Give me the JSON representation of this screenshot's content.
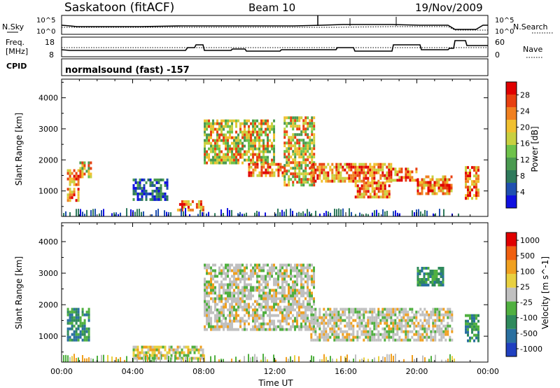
{
  "header": {
    "station": "Saskatoon (fitACF)",
    "beam": "Beam 10",
    "date": "19/Nov/2009"
  },
  "noise_panel": {
    "left_label": "N.Sky",
    "right_label": "N.Search",
    "left_ticks": [
      "10^5",
      "10^0"
    ],
    "right_ticks": [
      "10^5",
      "10^0"
    ]
  },
  "freq_panel": {
    "left_label_1": "Freq.",
    "left_label_2": "[MHz]",
    "right_label": "Nave",
    "left_ticks": [
      "18",
      "8"
    ],
    "right_ticks": [
      "60",
      "0"
    ]
  },
  "cpid": {
    "label": "CPID",
    "text": "normalsound (fast) -157"
  },
  "chart_data": [
    {
      "type": "heatmap",
      "name": "power",
      "ylabel": "Slant Range [km]",
      "yticks": [
        "1000",
        "2000",
        "3000",
        "4000"
      ],
      "ylim": [
        180,
        4600
      ],
      "xlim": [
        0,
        24
      ],
      "colorbar": {
        "label": "Power [dB]",
        "ticks": [
          "4",
          "8",
          "12",
          "16",
          "20",
          "24",
          "28"
        ],
        "colors": [
          "#1010e0",
          "#2050b0",
          "#2f7a5c",
          "#4a9a50",
          "#6ec24a",
          "#c8d040",
          "#f0c030",
          "#f08020",
          "#e84010",
          "#e00000"
        ]
      },
      "echo_regions": [
        {
          "t": [
            0.3,
            0.9
          ],
          "r": [
            1200,
            1700
          ],
          "level": "high"
        },
        {
          "t": [
            0.3,
            0.9
          ],
          "r": [
            700,
            1100
          ],
          "level": "high"
        },
        {
          "t": [
            1.0,
            1.6
          ],
          "r": [
            1450,
            1950
          ],
          "level": "mid"
        },
        {
          "t": [
            4.0,
            6.0
          ],
          "r": [
            700,
            1400
          ],
          "level": "low"
        },
        {
          "t": [
            6.5,
            8.0
          ],
          "r": [
            350,
            700
          ],
          "level": "high"
        },
        {
          "t": [
            8.0,
            12.0
          ],
          "r": [
            1900,
            3300
          ],
          "level": "mid"
        },
        {
          "t": [
            10.5,
            12.5
          ],
          "r": [
            1500,
            1900
          ],
          "level": "high"
        },
        {
          "t": [
            12.5,
            14.2
          ],
          "r": [
            1200,
            3400
          ],
          "level": "mid"
        },
        {
          "t": [
            14.0,
            18.5
          ],
          "r": [
            1300,
            1900
          ],
          "level": "high"
        },
        {
          "t": [
            16.5,
            18.5
          ],
          "r": [
            800,
            1300
          ],
          "level": "high"
        },
        {
          "t": [
            18.5,
            20.0
          ],
          "r": [
            1350,
            1750
          ],
          "level": "high"
        },
        {
          "t": [
            20.0,
            22.0
          ],
          "r": [
            950,
            1500
          ],
          "level": "high"
        },
        {
          "t": [
            22.7,
            23.5
          ],
          "r": [
            800,
            1800
          ],
          "level": "high"
        }
      ]
    },
    {
      "type": "heatmap",
      "name": "velocity",
      "ylabel": "Slant Range [km]",
      "yticks": [
        "1000",
        "2000",
        "3000",
        "4000"
      ],
      "ylim": [
        180,
        4600
      ],
      "xlim": [
        0,
        24
      ],
      "xticks": [
        "00:00",
        "04:00",
        "08:00",
        "12:00",
        "16:00",
        "20:00",
        "00:00"
      ],
      "xlabel": "Time UT",
      "colorbar": {
        "label": "Velocity [m s^-1]",
        "ticks": [
          "1000",
          "500",
          "100",
          "25",
          "-25",
          "-100",
          "-500",
          "-1000"
        ],
        "colors": [
          "#2040c0",
          "#2a70a0",
          "#2f8a5c",
          "#50b040",
          "#c0c0c0",
          "#e8d040",
          "#f0a020",
          "#f06010",
          "#e00000"
        ]
      },
      "echo_regions": [
        {
          "t": [
            0.3,
            1.6
          ],
          "r": [
            900,
            1900
          ],
          "level": "green"
        },
        {
          "t": [
            4.0,
            8.0
          ],
          "r": [
            300,
            700
          ],
          "level": "yellow"
        },
        {
          "t": [
            8.0,
            14.2
          ],
          "r": [
            1200,
            3300
          ],
          "level": "grey"
        },
        {
          "t": [
            14.0,
            22.0
          ],
          "r": [
            900,
            1900
          ],
          "level": "grey"
        },
        {
          "t": [
            20.0,
            21.5
          ],
          "r": [
            2600,
            3200
          ],
          "level": "green"
        },
        {
          "t": [
            22.7,
            23.5
          ],
          "r": [
            900,
            1700
          ],
          "level": "green"
        }
      ]
    }
  ]
}
